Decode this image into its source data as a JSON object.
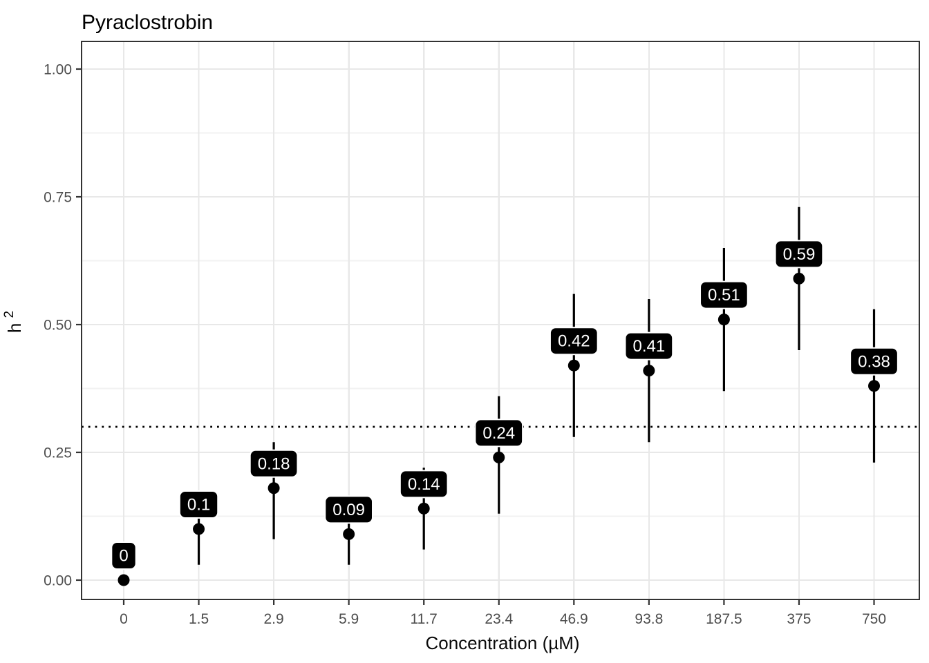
{
  "chart_data": {
    "type": "scatter",
    "subtype": "pointrange-with-labels",
    "title": "Pyraclostrobin",
    "xlabel": "Concentration (µM)",
    "ylabel_base": "h",
    "ylabel_sup": "2",
    "categories": [
      "0",
      "1.5",
      "2.9",
      "5.9",
      "11.7",
      "23.4",
      "46.9",
      "93.8",
      "187.5",
      "375",
      "750"
    ],
    "values": [
      0,
      0.1,
      0.18,
      0.09,
      0.14,
      0.24,
      0.42,
      0.41,
      0.51,
      0.59,
      0.38
    ],
    "point_labels": [
      "0",
      "0.1",
      "0.18",
      "0.09",
      "0.14",
      "0.24",
      "0.42",
      "0.41",
      "0.51",
      "0.59",
      "0.38"
    ],
    "error_low": [
      0,
      0.03,
      0.08,
      0.03,
      0.06,
      0.13,
      0.28,
      0.27,
      0.37,
      0.45,
      0.23
    ],
    "error_high": [
      0,
      0.17,
      0.27,
      0.16,
      0.22,
      0.36,
      0.56,
      0.55,
      0.65,
      0.73,
      0.53
    ],
    "threshold_line": {
      "value": 0.3,
      "style": "dotted",
      "color": "#000000"
    },
    "y_ticks": [
      0,
      0.25,
      0.5,
      0.75,
      1.0
    ],
    "y_tick_labels": [
      "0.00",
      "0.25",
      "0.50",
      "0.75",
      "1.00"
    ],
    "y_minor_gridlines": [
      0.125,
      0.375,
      0.625,
      0.875
    ],
    "ylim": [
      -0.04,
      1.05
    ],
    "grid": "horizontal major+minor, vertical at each category",
    "legend": "none",
    "colors": {
      "point": "#000000",
      "error_bar": "#000000",
      "label_bg": "#000000",
      "label_border": "#ffffff",
      "label_text": "#ffffff",
      "grid_major": "#e8e8e8",
      "grid_minor": "#f2f2f2",
      "panel_border": "#333333",
      "tick": "#333333",
      "axis_text": "#4d4d4d",
      "title_text": "#000000",
      "background": "#ffffff"
    }
  }
}
